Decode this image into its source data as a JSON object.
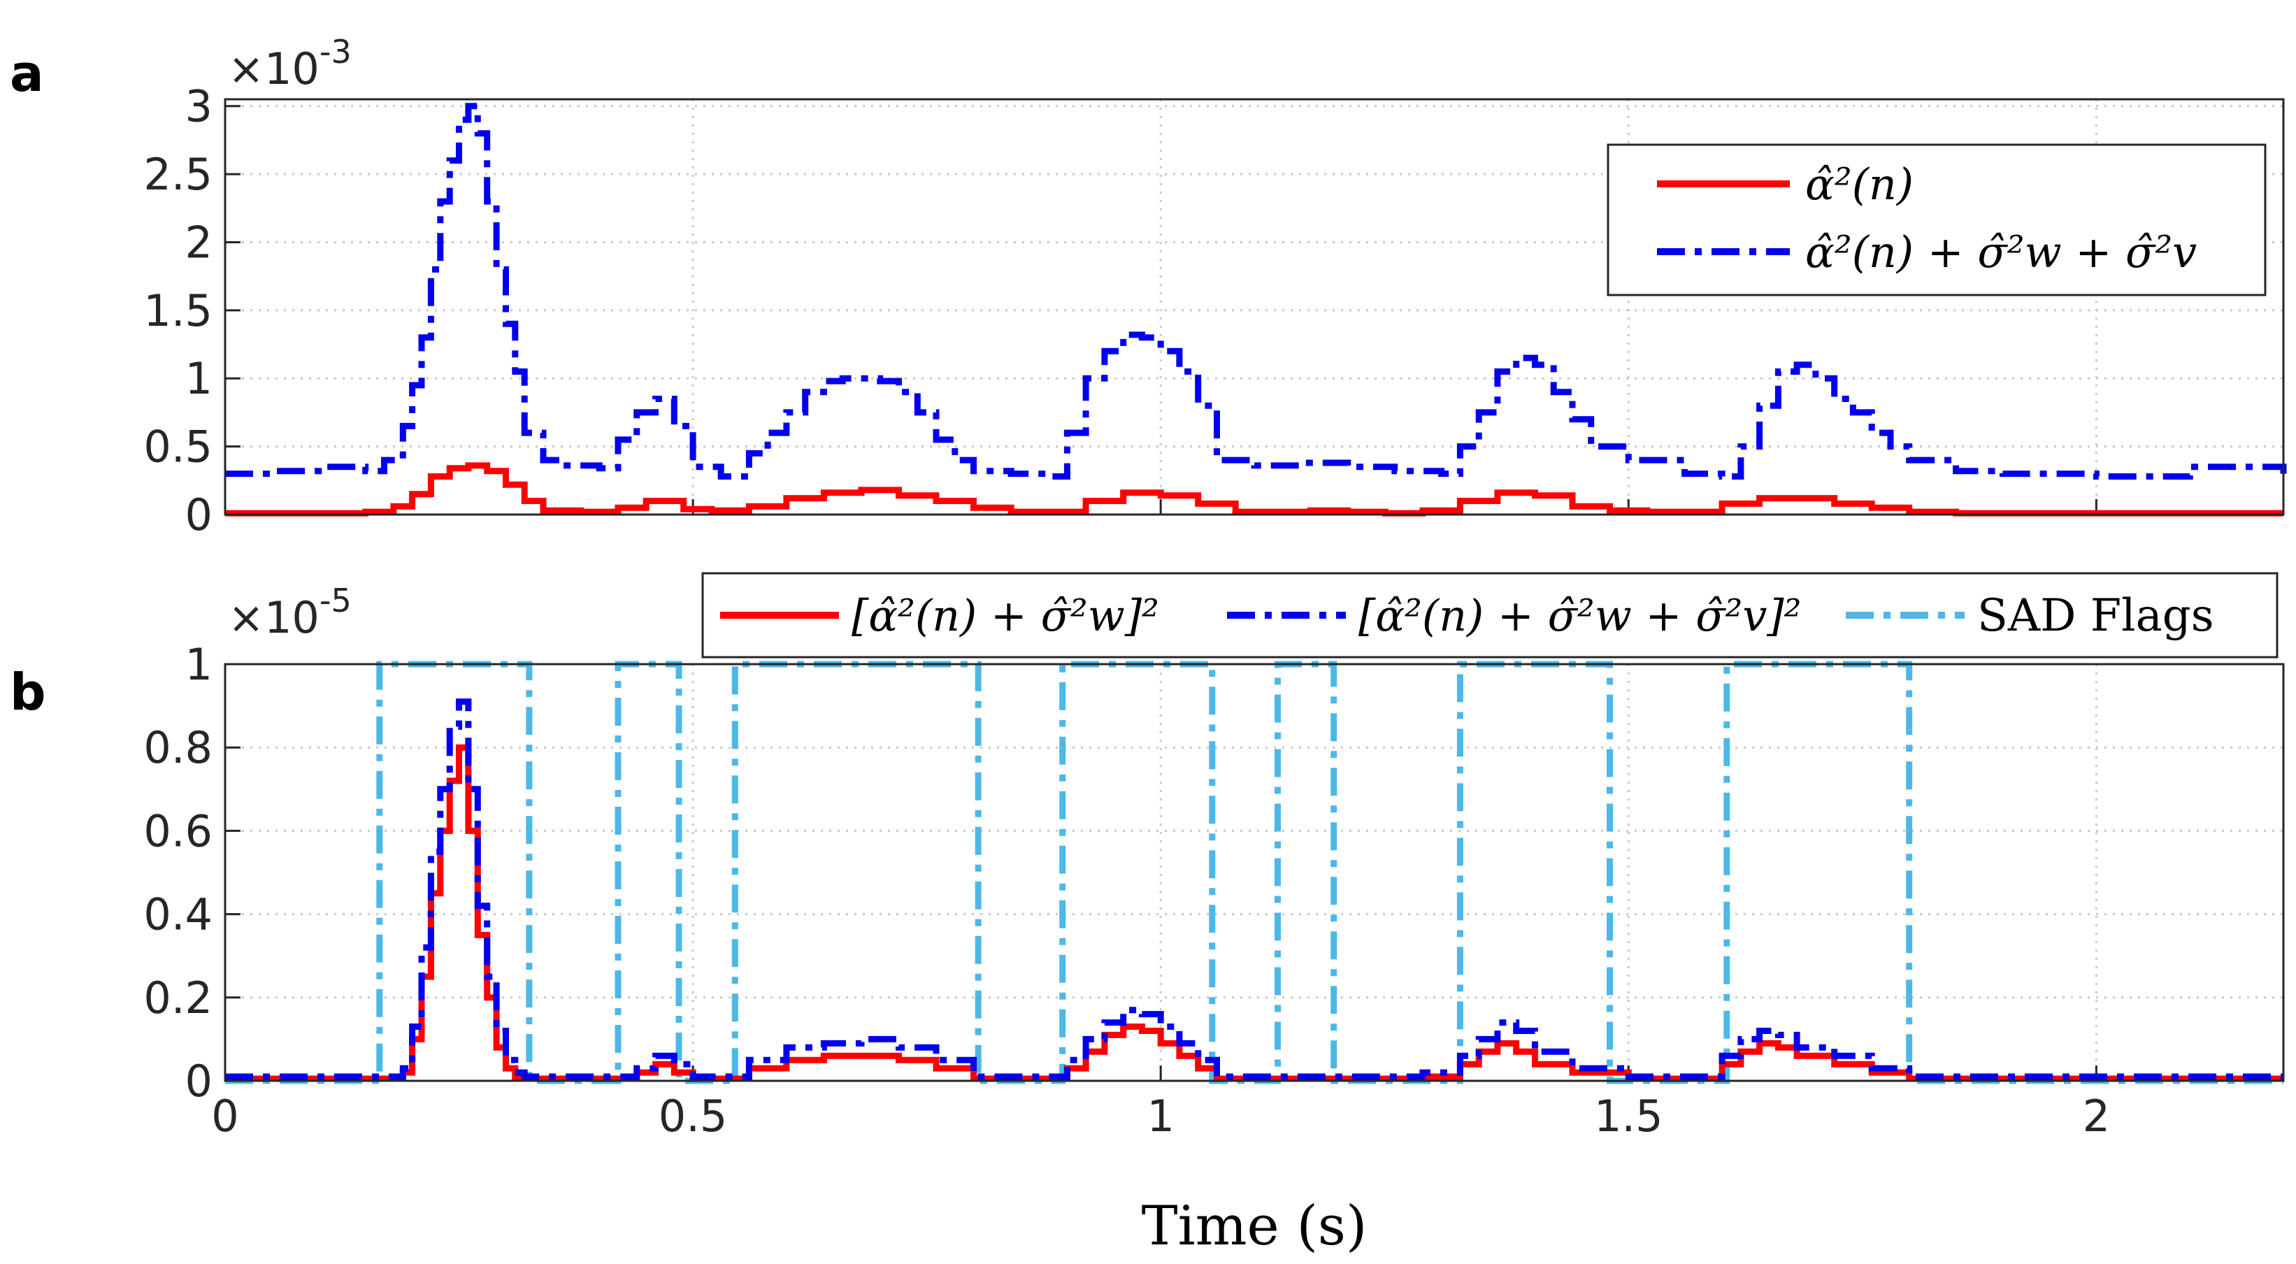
{
  "figure": {
    "panel_labels": [
      "a",
      "b"
    ],
    "xlabel": "Time (s)"
  },
  "colors": {
    "red": "#ff0000",
    "blue": "#0000ee",
    "cyan": "#4db8e8",
    "grid": "#c8c8c8",
    "axis": "#262626"
  },
  "chart_data": [
    {
      "type": "line",
      "panel": "a",
      "title": "",
      "xlabel": "",
      "ylabel": "",
      "y_multiplier": "×10",
      "y_exponent": "-3",
      "xlim": [
        0,
        2.2
      ],
      "ylim": [
        0,
        3.05
      ],
      "xticks": [
        0,
        0.5,
        1,
        1.5,
        2
      ],
      "yticks": [
        0,
        0.5,
        1,
        1.5,
        2,
        2.5,
        3
      ],
      "ytick_labels": [
        "0",
        "0.5",
        "1",
        "1.5",
        "2",
        "2.5",
        "3"
      ],
      "grid": true,
      "legend_position": "top-right",
      "series": [
        {
          "name": "α̂²(n)",
          "legend_label": "α̂²(n)",
          "color": "#ff0000",
          "dash": "solid",
          "x": [
            0,
            0.05,
            0.1,
            0.15,
            0.18,
            0.2,
            0.22,
            0.24,
            0.26,
            0.28,
            0.3,
            0.32,
            0.34,
            0.38,
            0.42,
            0.45,
            0.47,
            0.49,
            0.52,
            0.56,
            0.6,
            0.64,
            0.68,
            0.72,
            0.76,
            0.8,
            0.84,
            0.88,
            0.92,
            0.96,
            1.0,
            1.04,
            1.08,
            1.12,
            1.16,
            1.2,
            1.24,
            1.28,
            1.32,
            1.36,
            1.4,
            1.44,
            1.48,
            1.52,
            1.56,
            1.6,
            1.64,
            1.68,
            1.72,
            1.76,
            1.8,
            1.85,
            1.9,
            2.0,
            2.1,
            2.2
          ],
          "y": [
            0.01,
            0.01,
            0.01,
            0.02,
            0.06,
            0.15,
            0.28,
            0.34,
            0.36,
            0.32,
            0.22,
            0.1,
            0.03,
            0.02,
            0.05,
            0.1,
            0.1,
            0.04,
            0.03,
            0.06,
            0.12,
            0.16,
            0.18,
            0.14,
            0.1,
            0.05,
            0.02,
            0.02,
            0.1,
            0.16,
            0.14,
            0.08,
            0.02,
            0.02,
            0.03,
            0.02,
            0.01,
            0.03,
            0.1,
            0.16,
            0.14,
            0.06,
            0.03,
            0.02,
            0.02,
            0.08,
            0.12,
            0.12,
            0.08,
            0.05,
            0.02,
            0.01,
            0.01,
            0.01,
            0.01,
            0.01
          ]
        },
        {
          "name": "α̂²(n) + σ̂²_w + σ̂²_v",
          "legend_label": "α̂²(n) + σ̂²w + σ̂²v",
          "color": "#0000ee",
          "dash": "dashdot",
          "x": [
            0,
            0.05,
            0.1,
            0.15,
            0.17,
            0.19,
            0.2,
            0.21,
            0.22,
            0.23,
            0.24,
            0.25,
            0.26,
            0.27,
            0.28,
            0.29,
            0.3,
            0.31,
            0.32,
            0.34,
            0.36,
            0.4,
            0.42,
            0.44,
            0.46,
            0.48,
            0.5,
            0.53,
            0.56,
            0.58,
            0.6,
            0.62,
            0.64,
            0.66,
            0.7,
            0.72,
            0.74,
            0.76,
            0.78,
            0.8,
            0.84,
            0.88,
            0.9,
            0.92,
            0.94,
            0.96,
            0.98,
            1.0,
            1.02,
            1.04,
            1.06,
            1.1,
            1.15,
            1.2,
            1.25,
            1.3,
            1.32,
            1.34,
            1.36,
            1.38,
            1.4,
            1.42,
            1.44,
            1.46,
            1.5,
            1.56,
            1.6,
            1.62,
            1.64,
            1.66,
            1.68,
            1.7,
            1.72,
            1.74,
            1.76,
            1.78,
            1.8,
            1.85,
            1.9,
            2.0,
            2.1,
            2.2
          ],
          "y": [
            0.3,
            0.32,
            0.35,
            0.32,
            0.4,
            0.65,
            0.95,
            1.3,
            1.8,
            2.3,
            2.6,
            2.9,
            3.0,
            2.8,
            2.3,
            1.8,
            1.4,
            1.05,
            0.6,
            0.4,
            0.36,
            0.34,
            0.55,
            0.75,
            0.85,
            0.65,
            0.35,
            0.28,
            0.45,
            0.6,
            0.75,
            0.9,
            0.98,
            1.0,
            0.98,
            0.9,
            0.75,
            0.55,
            0.4,
            0.32,
            0.3,
            0.28,
            0.6,
            1.0,
            1.2,
            1.32,
            1.3,
            1.2,
            1.05,
            0.8,
            0.4,
            0.36,
            0.38,
            0.35,
            0.32,
            0.3,
            0.5,
            0.75,
            1.05,
            1.15,
            1.1,
            0.9,
            0.7,
            0.5,
            0.4,
            0.3,
            0.28,
            0.5,
            0.8,
            1.05,
            1.1,
            1.0,
            0.85,
            0.75,
            0.6,
            0.5,
            0.4,
            0.32,
            0.3,
            0.28,
            0.35,
            0.3
          ]
        }
      ]
    },
    {
      "type": "line",
      "panel": "b",
      "title": "",
      "xlabel": "Time (s)",
      "ylabel": "",
      "y_multiplier": "×10",
      "y_exponent": "-5",
      "xlim": [
        0,
        2.2
      ],
      "ylim": [
        0,
        1.0
      ],
      "xticks": [
        0,
        0.5,
        1,
        1.5,
        2
      ],
      "xtick_labels": [
        "0",
        "0.5",
        "1",
        "1.5",
        "2"
      ],
      "yticks": [
        0,
        0.2,
        0.4,
        0.6,
        0.8,
        1.0
      ],
      "ytick_labels": [
        "0",
        "0.2",
        "0.4",
        "0.6",
        "0.8",
        "1"
      ],
      "grid": true,
      "legend_position": "top (horizontal)",
      "series": [
        {
          "name": "[α̂²(n) + σ̂²_w]²",
          "legend_label": "[α̂²(n) + σ̂²w]²",
          "color": "#ff0000",
          "dash": "solid",
          "x": [
            0,
            0.1,
            0.17,
            0.19,
            0.2,
            0.21,
            0.22,
            0.23,
            0.24,
            0.25,
            0.26,
            0.27,
            0.28,
            0.29,
            0.3,
            0.31,
            0.32,
            0.34,
            0.4,
            0.44,
            0.46,
            0.48,
            0.5,
            0.56,
            0.6,
            0.64,
            0.68,
            0.72,
            0.76,
            0.8,
            0.86,
            0.9,
            0.92,
            0.94,
            0.96,
            0.98,
            1.0,
            1.02,
            1.04,
            1.06,
            1.1,
            1.2,
            1.28,
            1.32,
            1.34,
            1.36,
            1.38,
            1.4,
            1.44,
            1.5,
            1.6,
            1.62,
            1.64,
            1.66,
            1.68,
            1.72,
            1.76,
            1.8,
            2.0,
            2.2
          ],
          "y": [
            0.005,
            0.005,
            0.005,
            0.02,
            0.1,
            0.25,
            0.45,
            0.6,
            0.72,
            0.8,
            0.6,
            0.35,
            0.2,
            0.08,
            0.03,
            0.01,
            0.005,
            0.005,
            0.005,
            0.02,
            0.04,
            0.02,
            0.005,
            0.03,
            0.05,
            0.06,
            0.06,
            0.05,
            0.03,
            0.005,
            0.005,
            0.03,
            0.07,
            0.11,
            0.13,
            0.12,
            0.09,
            0.06,
            0.03,
            0.005,
            0.005,
            0.005,
            0.01,
            0.04,
            0.07,
            0.09,
            0.07,
            0.04,
            0.02,
            0.005,
            0.04,
            0.07,
            0.09,
            0.08,
            0.06,
            0.04,
            0.02,
            0.005,
            0.005,
            0.005
          ]
        },
        {
          "name": "[α̂²(n) + σ̂²_w + σ̂²_v]²",
          "legend_label": "[α̂²(n) + σ̂²w + σ̂²v]²",
          "color": "#0000ee",
          "dash": "dashdot",
          "x": [
            0,
            0.1,
            0.17,
            0.19,
            0.2,
            0.21,
            0.22,
            0.23,
            0.24,
            0.25,
            0.26,
            0.27,
            0.28,
            0.29,
            0.3,
            0.31,
            0.32,
            0.34,
            0.4,
            0.44,
            0.46,
            0.48,
            0.5,
            0.56,
            0.6,
            0.64,
            0.68,
            0.72,
            0.76,
            0.8,
            0.86,
            0.9,
            0.92,
            0.94,
            0.96,
            0.98,
            1.0,
            1.02,
            1.04,
            1.06,
            1.1,
            1.2,
            1.28,
            1.32,
            1.34,
            1.36,
            1.38,
            1.4,
            1.44,
            1.5,
            1.6,
            1.62,
            1.64,
            1.66,
            1.68,
            1.72,
            1.76,
            1.8,
            2.0,
            2.2
          ],
          "y": [
            0.01,
            0.01,
            0.01,
            0.03,
            0.13,
            0.32,
            0.55,
            0.7,
            0.85,
            0.91,
            0.7,
            0.42,
            0.25,
            0.12,
            0.05,
            0.02,
            0.01,
            0.01,
            0.01,
            0.03,
            0.06,
            0.04,
            0.01,
            0.05,
            0.08,
            0.09,
            0.1,
            0.08,
            0.05,
            0.01,
            0.01,
            0.05,
            0.1,
            0.14,
            0.17,
            0.16,
            0.13,
            0.09,
            0.05,
            0.01,
            0.01,
            0.01,
            0.02,
            0.06,
            0.1,
            0.14,
            0.12,
            0.07,
            0.03,
            0.01,
            0.06,
            0.1,
            0.12,
            0.11,
            0.08,
            0.06,
            0.03,
            0.01,
            0.01,
            0.01
          ]
        },
        {
          "name": "SAD Flags",
          "legend_label": "SAD Flags",
          "color": "#4db8e8",
          "dash": "dashdot",
          "intervals": [
            [
              0.165,
              0.325
            ],
            [
              0.42,
              0.485
            ],
            [
              0.545,
              0.805
            ],
            [
              0.895,
              1.055
            ],
            [
              1.125,
              1.185
            ],
            [
              1.32,
              1.48
            ],
            [
              1.605,
              1.8
            ]
          ],
          "x": [
            0,
            0.165,
            0.165,
            0.325,
            0.325,
            0.42,
            0.42,
            0.485,
            0.485,
            0.545,
            0.545,
            0.805,
            0.805,
            0.895,
            0.895,
            1.055,
            1.055,
            1.125,
            1.125,
            1.185,
            1.185,
            1.32,
            1.32,
            1.48,
            1.48,
            1.605,
            1.605,
            1.8,
            1.8,
            2.2
          ],
          "y": [
            0,
            0,
            1,
            1,
            0,
            0,
            1,
            1,
            0,
            0,
            1,
            1,
            0,
            0,
            1,
            1,
            0,
            0,
            1,
            1,
            0,
            0,
            1,
            1,
            0,
            0,
            1,
            1,
            0,
            0
          ]
        }
      ]
    }
  ]
}
